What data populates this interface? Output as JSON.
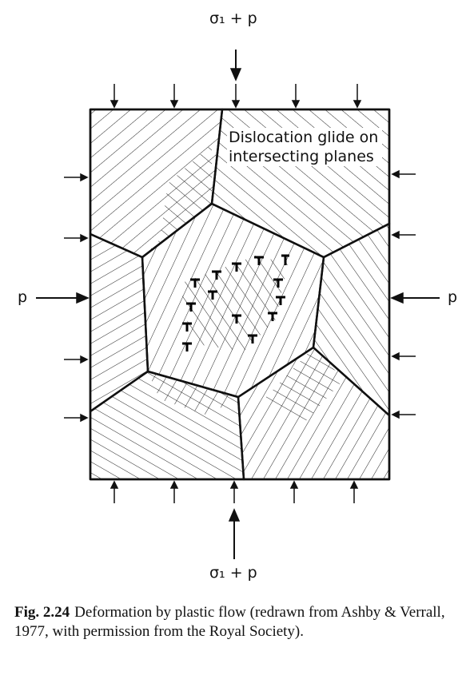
{
  "labels": {
    "top": "σ₁ + p",
    "bottom": "σ₁ + p",
    "left": "p",
    "right": "p",
    "annotation": "Dislocation glide on intersecting planes"
  },
  "caption": {
    "label": "Fig. 2.24",
    "text": "Deformation by plastic flow (redrawn from Ashby & Verrall, 1977, with permission from the Royal Society)."
  }
}
